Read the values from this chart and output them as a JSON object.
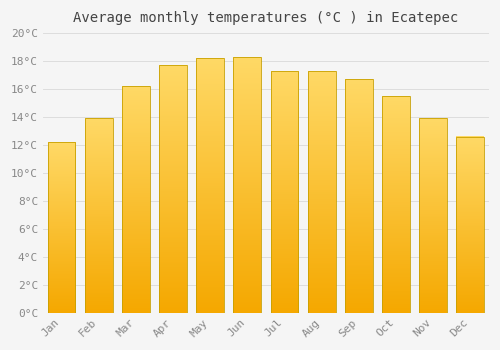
{
  "title": "Average monthly temperatures (°C ) in Ecatepec",
  "months": [
    "Jan",
    "Feb",
    "Mar",
    "Apr",
    "May",
    "Jun",
    "Jul",
    "Aug",
    "Sep",
    "Oct",
    "Nov",
    "Dec"
  ],
  "temperatures": [
    12.2,
    13.9,
    16.2,
    17.7,
    18.2,
    18.3,
    17.3,
    17.3,
    16.7,
    15.5,
    13.9,
    12.6
  ],
  "bar_color_light": "#FFD966",
  "bar_color_dark": "#F5A800",
  "bar_edge_color": "#C8A000",
  "ylim": [
    0,
    20
  ],
  "ytick_step": 2,
  "background_color": "#f5f5f5",
  "grid_color": "#dddddd",
  "title_fontsize": 10,
  "tick_fontsize": 8,
  "tick_color": "#888888",
  "title_color": "#444444",
  "bar_width": 0.75
}
